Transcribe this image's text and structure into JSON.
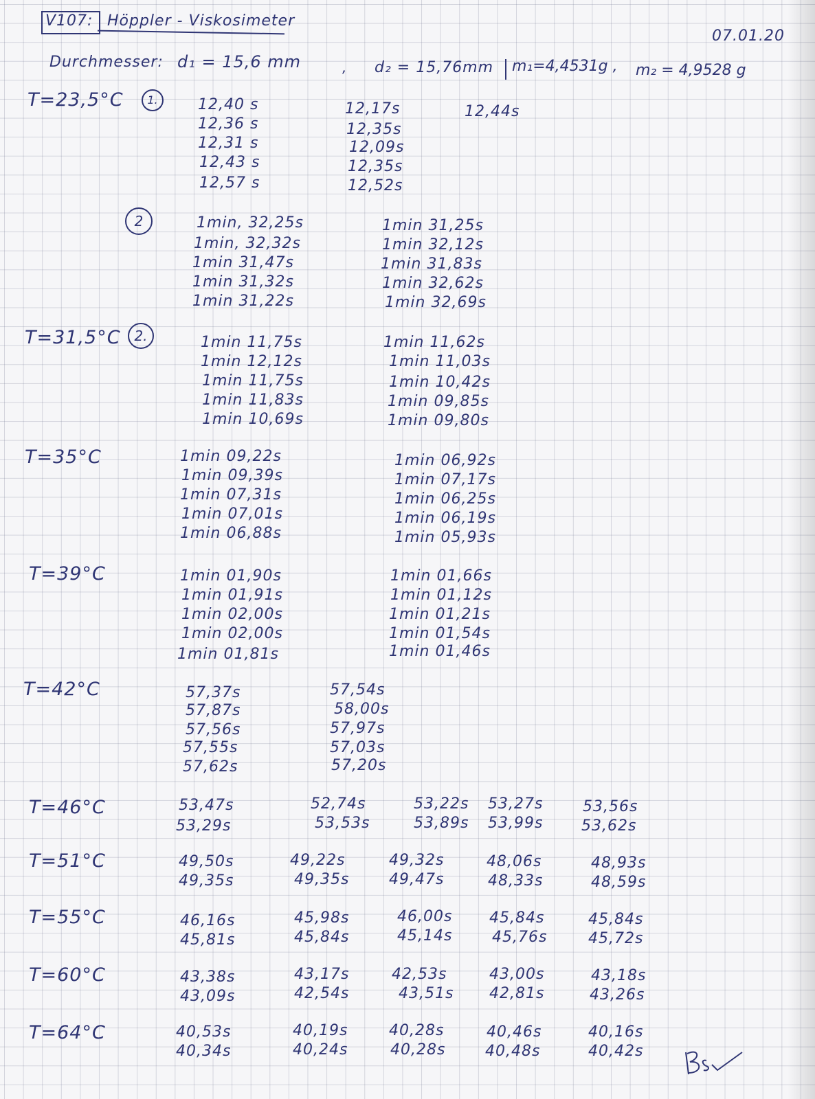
{
  "header": {
    "exp_no": "V107:",
    "title": "Höppler - Viskosimeter",
    "date": "07.01.20",
    "diam_label": "Durchmesser:",
    "d1": "d₁ = 15,6 mm",
    "sep": ",",
    "d2": "d₂ = 15,76mm",
    "m1": "m₁=4,4531g ,",
    "m2": "m₂ = 4,9528 g"
  },
  "blocks": [
    {
      "temp": "T=23,5°C",
      "ball1": "1.",
      "cols": [
        [
          "12,40 s",
          "12,36 s",
          "12,31 s",
          "12,43 s",
          "12,57 s"
        ],
        [
          "12,17s",
          "12,35s",
          "12,09s",
          "12,35s",
          "12,52s"
        ],
        [
          "12,44s"
        ]
      ],
      "ball2": "2",
      "cols2": [
        [
          "1min, 32,25s",
          "1min, 32,32s",
          "1min 31,47s",
          "1min 31,32s",
          "1min 31,22s"
        ],
        [
          "1min 31,25s",
          "1min 32,12s",
          "1min 31,83s",
          "1min 32,62s",
          "1min 32,69s"
        ]
      ]
    },
    {
      "temp": "T=31,5°C",
      "ball": "2.",
      "cols": [
        [
          "1min 11,75s",
          "1min 12,12s",
          "1min 11,75s",
          "1min 11,83s",
          "1min 10,69s"
        ],
        [
          "1min 11,62s",
          "1min 11,03s",
          "1min 10,42s",
          "1min 09,85s",
          "1min 09,80s"
        ]
      ]
    },
    {
      "temp": "T=35°C",
      "cols": [
        [
          "1min 09,22s",
          "1min 09,39s",
          "1min 07,31s",
          "1min 07,01s",
          "1min 06,88s"
        ],
        [
          "1min 06,92s",
          "1min 07,17s",
          "1min 06,25s",
          "1min 06,19s",
          "1min 05,93s"
        ]
      ]
    },
    {
      "temp": "T=39°C",
      "cols": [
        [
          "1min 01,90s",
          "1min 01,91s",
          "1min 02,00s",
          "1min 02,00s",
          "1min 01,81s"
        ],
        [
          "1min 01,66s",
          "1min 01,12s",
          "1min 01,21s",
          "1min 01,54s",
          "1min 01,46s"
        ]
      ]
    },
    {
      "temp": "T=42°C",
      "cols": [
        [
          "57,37s",
          "57,87s",
          "57,56s",
          "57,55s",
          "57,62s"
        ],
        [
          "57,54s",
          "58,00s",
          "57,97s",
          "57,03s",
          "57,20s"
        ]
      ]
    },
    {
      "temp": "T=46°C",
      "cols": [
        [
          "53,47s",
          "53,29s"
        ],
        [
          "52,74s",
          "53,53s"
        ],
        [
          "53,22s",
          "53,89s"
        ],
        [
          "53,27s",
          "53,99s"
        ],
        [
          "53,56s",
          "53,62s"
        ]
      ]
    },
    {
      "temp": "T=51°C",
      "cols": [
        [
          "49,50s",
          "49,35s"
        ],
        [
          "49,22s",
          "49,35s"
        ],
        [
          "49,32s",
          "49,47s"
        ],
        [
          "48,06s",
          "48,33s"
        ],
        [
          "48,93s",
          "48,59s"
        ]
      ]
    },
    {
      "temp": "T=55°C",
      "cols": [
        [
          "46,16s",
          "45,81s"
        ],
        [
          "45,98s",
          "45,84s"
        ],
        [
          "46,00s",
          "45,14s"
        ],
        [
          "45,84s",
          "45,76s"
        ],
        [
          "45,84s",
          "45,72s"
        ]
      ]
    },
    {
      "temp": "T=60°C",
      "cols": [
        [
          "43,38s",
          "43,09s"
        ],
        [
          "43,17s",
          "42,54s"
        ],
        [
          "42,53s",
          "43,51s"
        ],
        [
          "43,00s",
          "42,81s"
        ],
        [
          "43,18s",
          "43,26s"
        ]
      ]
    },
    {
      "temp": "T=64°C",
      "cols": [
        [
          "40,53s",
          "40,34s"
        ],
        [
          "40,19s",
          "40,24s"
        ],
        [
          "40,28s",
          "40,28s"
        ],
        [
          "40,46s",
          "40,48s"
        ],
        [
          "40,16s",
          "40,42s"
        ]
      ]
    }
  ],
  "signature": "BS"
}
